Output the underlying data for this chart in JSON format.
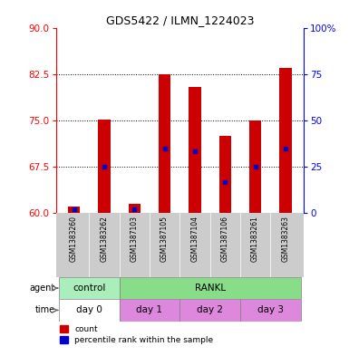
{
  "title": "GDS5422 / ILMN_1224023",
  "samples": [
    "GSM1383260",
    "GSM1383262",
    "GSM1387103",
    "GSM1387105",
    "GSM1387104",
    "GSM1387106",
    "GSM1383261",
    "GSM1383263"
  ],
  "count_values": [
    61.0,
    75.2,
    61.5,
    82.5,
    80.5,
    72.5,
    75.0,
    83.5
  ],
  "percentile_values": [
    60.5,
    67.5,
    60.5,
    70.5,
    70.0,
    65.0,
    67.5,
    70.5
  ],
  "ymin": 60,
  "ymax": 90,
  "y_ticks": [
    60,
    67.5,
    75,
    82.5,
    90
  ],
  "y2_labels": [
    "0",
    "25",
    "50",
    "75",
    "100%"
  ],
  "bar_color": "#cc0000",
  "blue_color": "#0000cc",
  "agent_groups": [
    {
      "label": "control",
      "start": 0,
      "end": 2,
      "color": "#aaeebb"
    },
    {
      "label": "RANKL",
      "start": 2,
      "end": 8,
      "color": "#88dd88"
    }
  ],
  "time_groups": [
    {
      "label": "day 0",
      "start": 0,
      "end": 2,
      "color": "#ffffff"
    },
    {
      "label": "day 1",
      "start": 2,
      "end": 4,
      "color": "#dd88dd"
    },
    {
      "label": "day 2",
      "start": 4,
      "end": 6,
      "color": "#dd88dd"
    },
    {
      "label": "day 3",
      "start": 6,
      "end": 8,
      "color": "#dd88dd"
    }
  ],
  "sample_bg": "#cccccc",
  "plot_bg": "#ffffff",
  "bar_width": 0.4,
  "xlim_left": -0.6,
  "xlim_right": 7.6
}
